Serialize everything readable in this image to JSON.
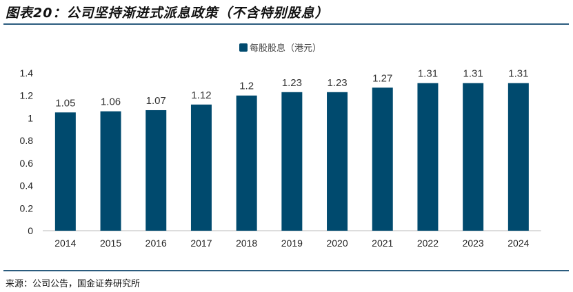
{
  "header": {
    "title": "图表20：公司坚持渐进式派息政策（不含特别股息）"
  },
  "footer": {
    "source": "来源：公司公告，国金证券研究所"
  },
  "chart_data": {
    "type": "bar",
    "title": "图表20：公司坚持渐进式派息政策（不含特别股息）",
    "categories": [
      "2014",
      "2015",
      "2016",
      "2017",
      "2018",
      "2019",
      "2020",
      "2021",
      "2022",
      "2023",
      "2024"
    ],
    "series": [
      {
        "name": "每股股息（港元）",
        "values": [
          1.05,
          1.06,
          1.07,
          1.12,
          1.2,
          1.23,
          1.23,
          1.27,
          1.31,
          1.31,
          1.31
        ],
        "labels": [
          "1.05",
          "1.06",
          "1.07",
          "1.12",
          "1.2",
          "1.23",
          "1.23",
          "1.27",
          "1.31",
          "1.31",
          "1.31"
        ],
        "color": "#004a6e"
      }
    ],
    "yticks": [
      "0",
      "0.2",
      "0.4",
      "0.6",
      "0.8",
      "1",
      "1.2",
      "1.4"
    ],
    "ylim": [
      0,
      1.4
    ],
    "xlabel": "",
    "ylabel": "",
    "grid": false,
    "legend": "top-center"
  }
}
